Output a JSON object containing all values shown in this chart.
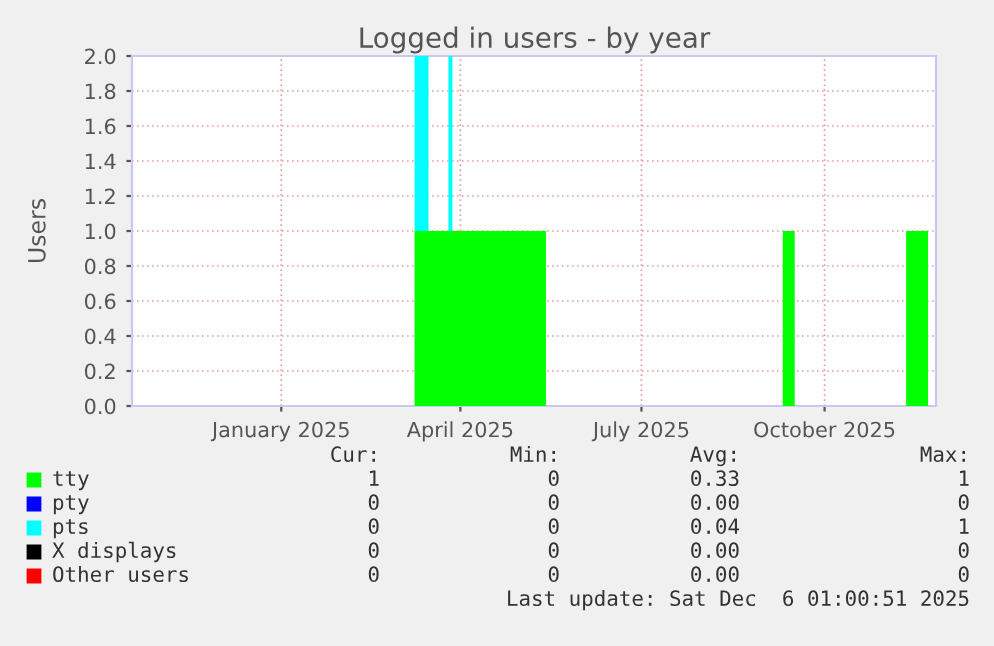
{
  "chart_data": {
    "type": "area",
    "x": [
      "2024-10-18",
      "2025-03-09",
      "2025-03-09",
      "2025-03-16",
      "2025-03-16",
      "2025-03-26",
      "2025-03-26",
      "2025-03-28",
      "2025-03-28",
      "2025-05-14",
      "2025-05-14",
      "2025-09-10",
      "2025-09-10",
      "2025-09-16",
      "2025-09-16",
      "2025-11-11",
      "2025-11-11",
      "2025-11-22",
      "2025-11-22",
      "2025-11-26"
    ],
    "stacked": true,
    "title": "Logged in users - by year",
    "ylabel": "Users",
    "series": [
      {
        "name": "tty",
        "color": "#00ff00",
        "values": [
          0,
          0,
          1,
          1,
          1,
          1,
          1,
          1,
          1,
          1,
          0,
          0,
          1,
          1,
          0,
          0,
          1,
          1,
          0,
          0
        ]
      },
      {
        "name": "pty",
        "color": "#0000ff",
        "values": [
          null,
          null,
          null,
          null,
          null,
          null,
          null,
          null,
          null,
          null,
          null,
          null,
          null,
          null,
          null,
          null,
          null,
          null,
          null,
          null
        ]
      },
      {
        "name": "pts",
        "color": "#00ffff",
        "values": [
          0,
          0,
          1,
          1,
          0,
          0,
          1,
          1,
          0,
          0,
          0,
          0,
          0,
          0,
          0,
          0,
          0,
          0,
          0,
          0
        ]
      },
      {
        "name": "X displays",
        "color": "#000000",
        "values": [
          null,
          null,
          null,
          null,
          null,
          null,
          null,
          null,
          null,
          null,
          null,
          null,
          null,
          null,
          null,
          null,
          null,
          null,
          null,
          null
        ]
      },
      {
        "name": "Other users",
        "color": "#ff0000",
        "values": [
          null,
          null,
          null,
          null,
          null,
          null,
          null,
          null,
          null,
          null,
          null,
          null,
          null,
          null,
          null,
          null,
          null,
          null,
          null,
          null
        ]
      }
    ],
    "xlim": [
      "2024-10-18",
      "2025-11-26"
    ],
    "xticks": [
      {
        "value": "2025-01-01",
        "label": "January 2025"
      },
      {
        "value": "2025-04-01",
        "label": "April 2025"
      },
      {
        "value": "2025-07-01",
        "label": "July 2025"
      },
      {
        "value": "2025-10-01",
        "label": "October 2025"
      }
    ],
    "ylim": [
      0,
      2
    ],
    "yticks": [
      {
        "value": 0,
        "label": "0.0"
      },
      {
        "value": 0.2,
        "label": "0.2"
      },
      {
        "value": 0.4,
        "label": "0.4"
      },
      {
        "value": 0.6,
        "label": "0.6"
      },
      {
        "value": 0.8,
        "label": "0.8"
      },
      {
        "value": 1,
        "label": "1.0"
      },
      {
        "value": 1.2,
        "label": "1.2"
      },
      {
        "value": 1.4,
        "label": "1.4"
      },
      {
        "value": 1.6,
        "label": "1.6"
      },
      {
        "value": 1.8,
        "label": "1.8"
      },
      {
        "value": 2,
        "label": "2.0"
      }
    ],
    "grid": true,
    "legend": "bottom",
    "annotations": [
      "Cur:",
      "Min:",
      "Avg:",
      "Max:",
      "1",
      "0",
      "0.33",
      "1",
      "0",
      "0",
      "0.00",
      "0",
      "0",
      "0",
      "0.04",
      "1",
      "0",
      "0",
      "0.00",
      "0",
      "0",
      "0",
      "0.00",
      "0",
      "Last update: Sat Dec  6 01:00:51 2025"
    ]
  }
}
